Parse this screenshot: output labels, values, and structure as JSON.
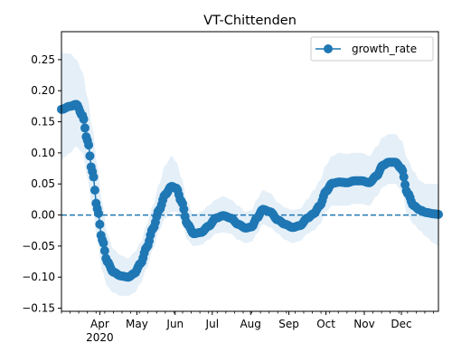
{
  "chart_data": {
    "type": "line",
    "title": "VT-Chittenden",
    "xlabel": "",
    "ylabel": "",
    "x_axis": {
      "type": "date",
      "range": [
        "2020-03-01",
        "2020-12-31"
      ],
      "major_ticks": [
        {
          "date": "2020-04-01",
          "label": "Apr",
          "sublabel": "2020"
        },
        {
          "date": "2020-05-01",
          "label": "May"
        },
        {
          "date": "2020-06-01",
          "label": "Jun"
        },
        {
          "date": "2020-07-01",
          "label": "Jul"
        },
        {
          "date": "2020-08-01",
          "label": "Aug"
        },
        {
          "date": "2020-09-01",
          "label": "Sep"
        },
        {
          "date": "2020-10-01",
          "label": "Oct"
        },
        {
          "date": "2020-11-01",
          "label": "Nov"
        },
        {
          "date": "2020-12-01",
          "label": "Dec"
        }
      ]
    },
    "y_axis": {
      "range": [
        -0.155,
        0.295
      ],
      "ticks": [
        -0.15,
        -0.1,
        -0.05,
        0.0,
        0.05,
        0.1,
        0.15,
        0.2,
        0.25
      ],
      "tick_labels": [
        "−0.15",
        "−0.10",
        "−0.05",
        "0.00",
        "0.05",
        "0.10",
        "0.15",
        "0.20",
        "0.25"
      ]
    },
    "grid": false,
    "legend": {
      "placement": "top-right",
      "entries": [
        "growth_rate"
      ]
    },
    "reference_line": {
      "y": 0.0,
      "style": "dashed",
      "color": "#1f77b4"
    },
    "series": [
      {
        "name": "growth_rate",
        "color": "#1f77b4",
        "marker": "circle",
        "band_color": "#dbe9f6",
        "points": [
          [
            "2020-03-01",
            0.17,
            0.09,
            0.26
          ],
          [
            "2020-03-08",
            0.175,
            0.1,
            0.26
          ],
          [
            "2020-03-13",
            0.178,
            0.11,
            0.25
          ],
          [
            "2020-03-18",
            0.16,
            0.1,
            0.23
          ],
          [
            "2020-03-22",
            0.12,
            0.06,
            0.19
          ],
          [
            "2020-03-26",
            0.07,
            0.01,
            0.14
          ],
          [
            "2020-03-30",
            0.01,
            -0.04,
            0.08
          ],
          [
            "2020-04-03",
            -0.04,
            -0.09,
            0.02
          ],
          [
            "2020-04-07",
            -0.075,
            -0.115,
            -0.03
          ],
          [
            "2020-04-12",
            -0.092,
            -0.125,
            -0.055
          ],
          [
            "2020-04-18",
            -0.098,
            -0.13,
            -0.065
          ],
          [
            "2020-04-24",
            -0.1,
            -0.13,
            -0.07
          ],
          [
            "2020-04-29",
            -0.094,
            -0.125,
            -0.06
          ],
          [
            "2020-05-04",
            -0.078,
            -0.11,
            -0.045
          ],
          [
            "2020-05-09",
            -0.052,
            -0.085,
            -0.015
          ],
          [
            "2020-05-14",
            -0.022,
            -0.055,
            0.015
          ],
          [
            "2020-05-19",
            0.008,
            -0.025,
            0.05
          ],
          [
            "2020-05-24",
            0.033,
            -0.005,
            0.08
          ],
          [
            "2020-05-29",
            0.046,
            0.005,
            0.095
          ],
          [
            "2020-06-02",
            0.043,
            0.005,
            0.085
          ],
          [
            "2020-06-06",
            0.022,
            -0.01,
            0.06
          ],
          [
            "2020-06-11",
            -0.015,
            -0.04,
            0.02
          ],
          [
            "2020-06-16",
            -0.03,
            -0.05,
            0.0
          ],
          [
            "2020-06-22",
            -0.028,
            -0.048,
            0.005
          ],
          [
            "2020-06-28",
            -0.018,
            -0.04,
            0.015
          ],
          [
            "2020-07-04",
            -0.005,
            -0.03,
            0.025
          ],
          [
            "2020-07-10",
            -0.001,
            -0.028,
            0.03
          ],
          [
            "2020-07-16",
            -0.005,
            -0.03,
            0.025
          ],
          [
            "2020-07-22",
            -0.015,
            -0.04,
            0.015
          ],
          [
            "2020-07-28",
            -0.021,
            -0.045,
            0.005
          ],
          [
            "2020-08-02",
            -0.019,
            -0.043,
            0.008
          ],
          [
            "2020-08-06",
            -0.005,
            -0.03,
            0.025
          ],
          [
            "2020-08-11",
            0.009,
            -0.015,
            0.04
          ],
          [
            "2020-08-17",
            0.005,
            -0.02,
            0.035
          ],
          [
            "2020-08-23",
            -0.008,
            -0.03,
            0.02
          ],
          [
            "2020-08-29",
            -0.015,
            -0.04,
            0.012
          ],
          [
            "2020-09-04",
            -0.02,
            -0.045,
            0.008
          ],
          [
            "2020-09-10",
            -0.017,
            -0.042,
            0.01
          ],
          [
            "2020-09-16",
            -0.005,
            -0.03,
            0.025
          ],
          [
            "2020-09-21",
            0.002,
            -0.025,
            0.04
          ],
          [
            "2020-09-26",
            0.015,
            -0.015,
            0.055
          ],
          [
            "2020-10-01",
            0.038,
            0.005,
            0.08
          ],
          [
            "2020-10-06",
            0.051,
            0.015,
            0.095
          ],
          [
            "2020-10-12",
            0.053,
            0.015,
            0.1
          ],
          [
            "2020-10-18",
            0.052,
            0.015,
            0.098
          ],
          [
            "2020-10-24",
            0.055,
            0.018,
            0.1
          ],
          [
            "2020-10-30",
            0.055,
            0.018,
            0.1
          ],
          [
            "2020-11-05",
            0.052,
            0.015,
            0.095
          ],
          [
            "2020-11-11",
            0.063,
            0.03,
            0.11
          ],
          [
            "2020-11-16",
            0.08,
            0.045,
            0.125
          ],
          [
            "2020-11-21",
            0.085,
            0.05,
            0.13
          ],
          [
            "2020-11-26",
            0.085,
            0.05,
            0.13
          ],
          [
            "2020-12-01",
            0.075,
            0.04,
            0.12
          ],
          [
            "2020-12-06",
            0.035,
            0.0,
            0.09
          ],
          [
            "2020-12-11",
            0.015,
            -0.015,
            0.07
          ],
          [
            "2020-12-16",
            0.008,
            -0.025,
            0.055
          ],
          [
            "2020-12-21",
            0.004,
            -0.035,
            0.05
          ],
          [
            "2020-12-27",
            0.002,
            -0.045,
            0.05
          ],
          [
            "2020-12-31",
            0.001,
            -0.05,
            0.05
          ]
        ]
      }
    ]
  }
}
